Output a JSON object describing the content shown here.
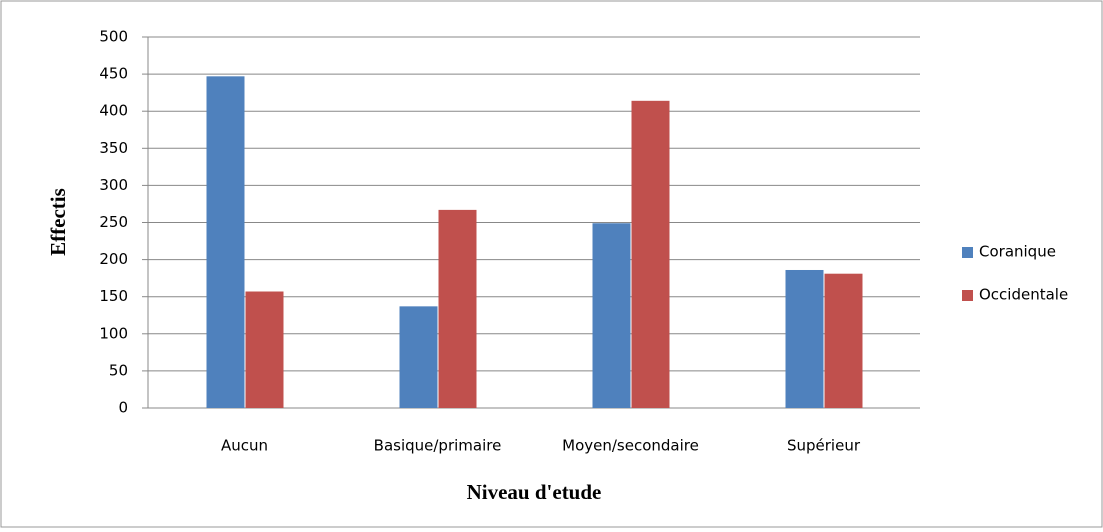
{
  "chart_data": {
    "type": "bar",
    "y_label": "Effectis",
    "x_label": "Niveau d'etude",
    "categories": [
      "Aucun",
      "Basique/primaire",
      "Moyen/secondaire",
      "Supérieur"
    ],
    "series": [
      {
        "name": "Coranique",
        "color": "#4f81bd",
        "values": [
          447,
          137,
          249,
          186
        ]
      },
      {
        "name": "Occidentale",
        "color": "#c0504d",
        "values": [
          157,
          267,
          414,
          181
        ]
      }
    ],
    "ylim": [
      0,
      500
    ],
    "yticks": [
      0,
      50,
      100,
      150,
      200,
      250,
      300,
      350,
      400,
      450,
      500
    ],
    "grid": true,
    "legend": "right"
  }
}
